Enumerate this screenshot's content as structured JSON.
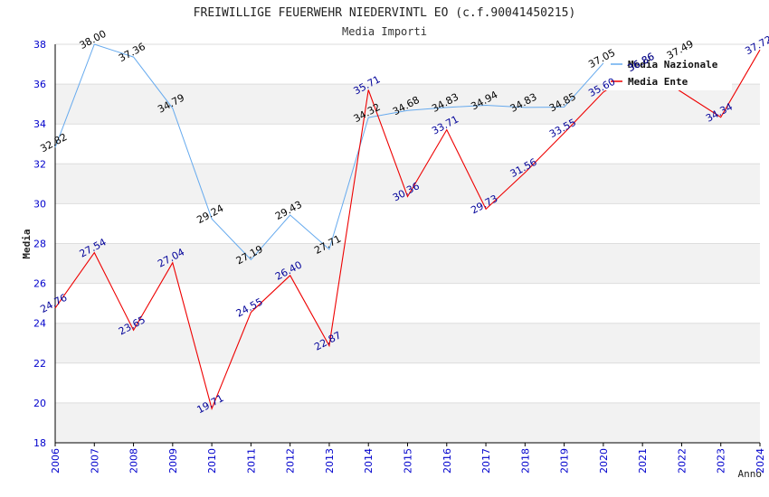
{
  "chart_data": {
    "type": "line",
    "title": "FREIWILLIGE FEUERWEHR NIEDERVINTL EO (c.f.90041450215)",
    "subtitle": "Media Importi",
    "xlabel": "Anno",
    "ylabel": "Media",
    "ylim": [
      18,
      38
    ],
    "yticks": [
      18,
      20,
      22,
      24,
      26,
      28,
      30,
      32,
      34,
      36,
      38
    ],
    "grid": true,
    "legend_position": "top-right",
    "x": [
      2006,
      2007,
      2008,
      2009,
      2010,
      2011,
      2012,
      2013,
      2014,
      2015,
      2016,
      2017,
      2018,
      2019,
      2020,
      2021,
      2022,
      2023,
      2024
    ],
    "series": [
      {
        "name": "Media Nazionale",
        "color": "#66aaee",
        "label_color": "#000000",
        "values": [
          32.82,
          38.0,
          37.36,
          34.79,
          29.24,
          27.19,
          29.43,
          27.71,
          34.32,
          34.68,
          34.83,
          34.94,
          34.83,
          34.85,
          37.05,
          36.86,
          37.49,
          null,
          null
        ],
        "labels": [
          "32.82",
          "38.00",
          "37.36",
          "34.79",
          "29.24",
          "27.19",
          "29.43",
          "27.71",
          "34.32",
          "34.68",
          "34.83",
          "34.94",
          "34.83",
          "34.85",
          "37.05",
          "36.86",
          "37.49",
          "",
          ""
        ]
      },
      {
        "name": "Media Ente",
        "color": "#ee0000",
        "label_color": "#000099",
        "values": [
          24.76,
          27.54,
          23.65,
          27.04,
          19.71,
          24.55,
          26.4,
          22.87,
          35.71,
          30.36,
          33.71,
          29.73,
          31.56,
          33.55,
          35.6,
          36.86,
          35.6,
          34.34,
          37.72
        ],
        "labels": [
          "24.76",
          "27.54",
          "23.65",
          "27.04",
          "19.71",
          "24.55",
          "26.40",
          "22.87",
          "35.71",
          "30.36",
          "33.71",
          "29.73",
          "31.56",
          "33.55",
          "35.60",
          "36.86",
          "",
          "34.34",
          "37.72"
        ]
      }
    ],
    "colors": {
      "band": "#f2f2f2",
      "gridline": "#dddddd",
      "axis": "#000000",
      "tick_label": "#0000cc"
    }
  }
}
